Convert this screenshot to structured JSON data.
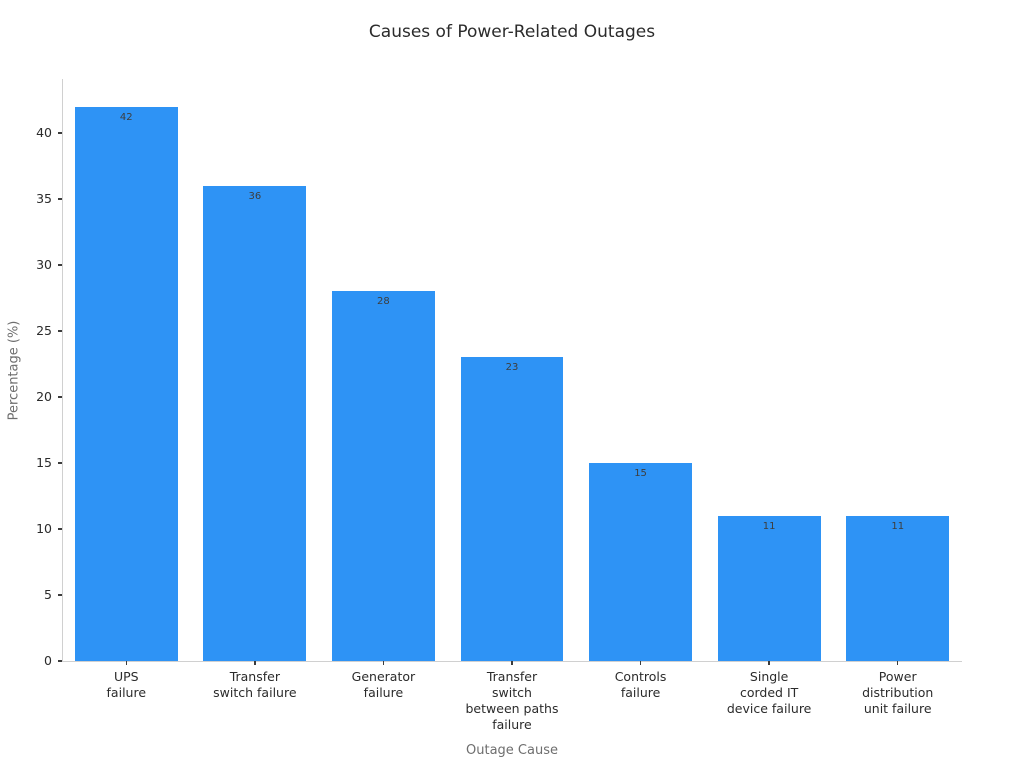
{
  "chart_data": {
    "type": "bar",
    "title": "Causes of Power-Related Outages",
    "xlabel": "Outage Cause",
    "ylabel": "Percentage (%)",
    "categories": [
      "UPS\nfailure",
      "Transfer\nswitch failure",
      "Generator\nfailure",
      "Transfer\nswitch\nbetween paths\nfailure",
      "Controls\nfailure",
      "Single\ncorded IT\ndevice failure",
      "Power\ndistribution\nunit failure"
    ],
    "values": [
      42,
      36,
      28,
      23,
      15,
      11,
      11
    ],
    "value_labels": [
      "42",
      "36",
      "28",
      "23",
      "15",
      "11",
      "11"
    ],
    "yticks": [
      0,
      5,
      10,
      15,
      20,
      25,
      30,
      35,
      40
    ],
    "ylim": [
      0,
      44.1
    ],
    "grid": false,
    "legend_position": "none",
    "bar_color": "#2E93F5"
  }
}
